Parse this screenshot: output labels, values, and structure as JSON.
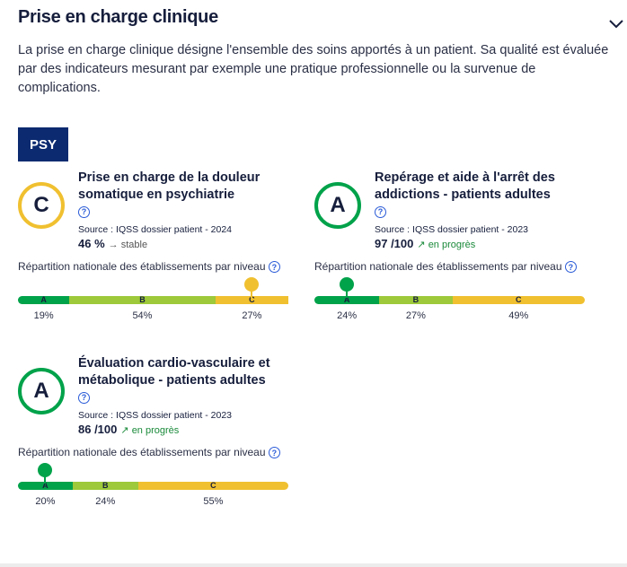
{
  "section": {
    "title": "Prise en charge clinique",
    "description": "La prise en charge clinique désigne l'ensemble des soins apportés à un patient. Sa qualité est évaluée par des indicateurs mesurant par exemple une pratique professionnelle ou la survenue de complications.",
    "tag": "PSY"
  },
  "colors": {
    "A": "#00a24a",
    "B": "#9dc93a",
    "C": "#f0c030",
    "navy": "#0b2a70"
  },
  "repartition_label": "Répartition nationale des établissements par niveau",
  "help_icon": "?",
  "indicators": [
    {
      "grade": "C",
      "title": "Prise en charge de la douleur somatique en psychiatrie",
      "source": "Source : IQSS dossier patient - 2024",
      "value": "46 %",
      "trend_icon": "→",
      "trend": "stable",
      "trend_color": "#555",
      "dist": [
        {
          "label": "A",
          "pct": 19,
          "text": "19%"
        },
        {
          "label": "B",
          "pct": 54,
          "text": "54%"
        },
        {
          "label": "C",
          "pct": 27,
          "text": "27%"
        }
      ]
    },
    {
      "grade": "A",
      "title": "Repérage et aide à l'arrêt des addictions - patients adultes",
      "source": "Source : IQSS dossier patient - 2023",
      "value": "97 /100",
      "trend_icon": "↗",
      "trend": "en progrès",
      "trend_color": "#1a8a3a",
      "dist": [
        {
          "label": "A",
          "pct": 24,
          "text": "24%"
        },
        {
          "label": "B",
          "pct": 27,
          "text": "27%"
        },
        {
          "label": "C",
          "pct": 49,
          "text": "49%"
        }
      ]
    },
    {
      "grade": "A",
      "title": "Évaluation cardio-vasculaire et métabolique - patients adultes",
      "source": "Source : IQSS dossier patient - 2023",
      "value": "86 /100",
      "trend_icon": "↗",
      "trend": "en progrès",
      "trend_color": "#1a8a3a",
      "dist": [
        {
          "label": "A",
          "pct": 20,
          "text": "20%"
        },
        {
          "label": "B",
          "pct": 24,
          "text": "24%"
        },
        {
          "label": "C",
          "pct": 55,
          "text": "55%"
        }
      ]
    }
  ]
}
